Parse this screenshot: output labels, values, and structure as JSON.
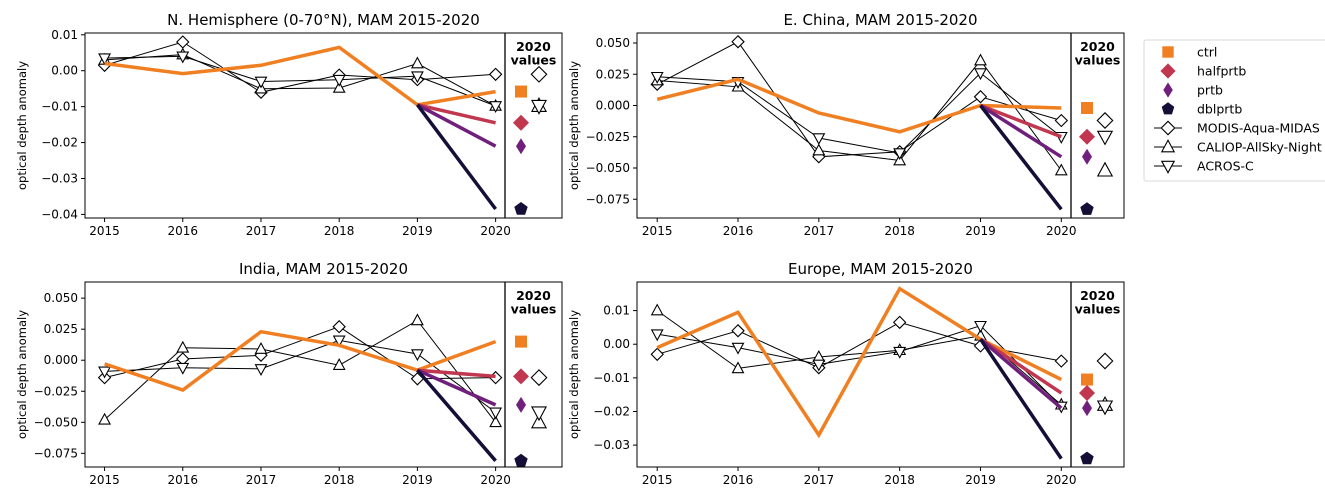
{
  "chart_data": [
    {
      "type": "line",
      "title": "N. Hemisphere (0-70°N), MAM 2015-2020",
      "ylabel": "optical depth anomaly",
      "xlabel": "",
      "x": [
        2015,
        2016,
        2017,
        2018,
        2019,
        2020
      ],
      "ylim": [
        -0.041,
        0.0105
      ],
      "yticks": [
        0.01,
        0.0,
        -0.01,
        -0.02,
        -0.03,
        -0.04
      ],
      "ytick_labels": [
        "0.01",
        "0.00",
        "−0.01",
        "−0.02",
        "−0.03",
        "−0.04"
      ],
      "inset_label": "2020\nvalues",
      "series": [
        {
          "name": "ctrl",
          "values": [
            0.002,
            -0.0008,
            0.0015,
            0.0065,
            -0.0095,
            -0.0058
          ],
          "value_2020": -0.0058
        },
        {
          "name": "halfprtb",
          "values": [
            null,
            null,
            null,
            null,
            -0.0095,
            -0.0145
          ],
          "value_2020": -0.0145
        },
        {
          "name": "prtb",
          "values": [
            null,
            null,
            null,
            null,
            -0.0095,
            -0.021
          ],
          "value_2020": -0.021
        },
        {
          "name": "dblprtb",
          "values": [
            null,
            null,
            null,
            null,
            -0.0095,
            -0.0385
          ],
          "value_2020": -0.0385
        },
        {
          "name": "MODIS-Aqua-MIDAS",
          "values": [
            0.0015,
            0.008,
            -0.006,
            -0.0012,
            -0.0025,
            -0.001
          ],
          "value_2020": -0.001
        },
        {
          "name": "CALIOP-AllSky-Night",
          "values": [
            0.003,
            0.0045,
            -0.005,
            -0.0048,
            0.002,
            -0.0098
          ],
          "value_2020": -0.0098
        },
        {
          "name": "ACROS-C",
          "values": [
            0.0035,
            0.004,
            -0.003,
            -0.0025,
            -0.0015,
            -0.0098
          ],
          "value_2020": -0.0098
        }
      ]
    },
    {
      "type": "line",
      "title": "E. China, MAM 2015-2020",
      "ylabel": "optical depth anomaly",
      "xlabel": "",
      "x": [
        2015,
        2016,
        2017,
        2018,
        2019,
        2020
      ],
      "ylim": [
        -0.09,
        0.058
      ],
      "yticks": [
        0.05,
        0.025,
        0.0,
        -0.025,
        -0.05,
        -0.075
      ],
      "ytick_labels": [
        "0.050",
        "0.025",
        "0.000",
        "−0.025",
        "−0.050",
        "−0.075"
      ],
      "inset_label": "2020\nvalues",
      "series": [
        {
          "name": "ctrl",
          "values": [
            0.005,
            0.021,
            -0.006,
            -0.021,
            0.0,
            -0.002
          ],
          "value_2020": -0.002
        },
        {
          "name": "halfprtb",
          "values": [
            null,
            null,
            null,
            null,
            0.0,
            -0.025
          ],
          "value_2020": -0.025
        },
        {
          "name": "prtb",
          "values": [
            null,
            null,
            null,
            null,
            0.0,
            -0.041
          ],
          "value_2020": -0.041
        },
        {
          "name": "dblprtb",
          "values": [
            null,
            null,
            null,
            null,
            0.0,
            -0.083
          ],
          "value_2020": -0.083
        },
        {
          "name": "MODIS-Aqua-MIDAS",
          "values": [
            0.017,
            0.051,
            -0.041,
            -0.037,
            0.007,
            -0.012
          ],
          "value_2020": -0.012
        },
        {
          "name": "CALIOP-AllSky-Night",
          "values": [
            0.02,
            0.015,
            -0.036,
            -0.044,
            0.036,
            -0.052
          ],
          "value_2020": -0.052
        },
        {
          "name": "ACROS-C",
          "values": [
            0.023,
            0.019,
            -0.026,
            -0.038,
            0.026,
            -0.025
          ],
          "value_2020": -0.025
        }
      ]
    },
    {
      "type": "line",
      "title": "India, MAM 2015-2020",
      "ylabel": "optical depth anomaly",
      "xlabel": "",
      "x": [
        2015,
        2016,
        2017,
        2018,
        2019,
        2020
      ],
      "ylim": [
        -0.086,
        0.063
      ],
      "yticks": [
        0.05,
        0.025,
        0.0,
        -0.025,
        -0.05,
        -0.075
      ],
      "ytick_labels": [
        "0.050",
        "0.025",
        "0.000",
        "−0.025",
        "−0.050",
        "−0.075"
      ],
      "inset_label": "2020\nvalues",
      "series": [
        {
          "name": "ctrl",
          "values": [
            -0.003,
            -0.024,
            0.023,
            0.012,
            -0.008,
            0.015
          ],
          "value_2020": 0.015
        },
        {
          "name": "halfprtb",
          "values": [
            null,
            null,
            null,
            null,
            -0.008,
            -0.013
          ],
          "value_2020": -0.013
        },
        {
          "name": "prtb",
          "values": [
            null,
            null,
            null,
            null,
            -0.008,
            -0.036
          ],
          "value_2020": -0.036
        },
        {
          "name": "dblprtb",
          "values": [
            null,
            null,
            null,
            null,
            -0.008,
            -0.081
          ],
          "value_2020": -0.081
        },
        {
          "name": "MODIS-Aqua-MIDAS",
          "values": [
            -0.014,
            0.001,
            0.004,
            0.027,
            -0.015,
            -0.014
          ],
          "value_2020": -0.014
        },
        {
          "name": "CALIOP-AllSky-Night",
          "values": [
            -0.048,
            0.01,
            0.009,
            -0.004,
            0.032,
            -0.05
          ],
          "value_2020": -0.05
        },
        {
          "name": "ACROS-C",
          "values": [
            -0.009,
            -0.006,
            -0.007,
            0.016,
            0.005,
            -0.042
          ],
          "value_2020": -0.042
        }
      ]
    },
    {
      "type": "line",
      "title": "Europe, MAM 2015-2020",
      "ylabel": "optical depth anomaly",
      "xlabel": "",
      "x": [
        2015,
        2016,
        2017,
        2018,
        2019,
        2020
      ],
      "ylim": [
        -0.0365,
        0.0185
      ],
      "yticks": [
        0.01,
        0.0,
        -0.01,
        -0.02,
        -0.03
      ],
      "ytick_labels": [
        "0.01",
        "0.00",
        "−0.01",
        "−0.02",
        "−0.03"
      ],
      "inset_label": "2020\nvalues",
      "series": [
        {
          "name": "ctrl",
          "values": [
            -0.001,
            0.0095,
            -0.027,
            0.0165,
            0.0015,
            -0.0105
          ],
          "value_2020": -0.0105
        },
        {
          "name": "halfprtb",
          "values": [
            null,
            null,
            null,
            null,
            0.0015,
            -0.0145
          ],
          "value_2020": -0.0145
        },
        {
          "name": "prtb",
          "values": [
            null,
            null,
            null,
            null,
            0.0015,
            -0.019
          ],
          "value_2020": -0.019
        },
        {
          "name": "dblprtb",
          "values": [
            null,
            null,
            null,
            null,
            0.0015,
            -0.034
          ],
          "value_2020": -0.034
        },
        {
          "name": "MODIS-Aqua-MIDAS",
          "values": [
            -0.003,
            0.004,
            -0.007,
            0.0065,
            -0.0005,
            -0.005
          ],
          "value_2020": -0.005
        },
        {
          "name": "CALIOP-AllSky-Night",
          "values": [
            0.01,
            -0.0072,
            -0.0038,
            -0.0018,
            0.0025,
            -0.018
          ],
          "value_2020": -0.018
        },
        {
          "name": "ACROS-C",
          "values": [
            0.003,
            -0.001,
            -0.006,
            -0.0022,
            0.0055,
            -0.0185
          ],
          "value_2020": -0.0185
        }
      ]
    }
  ],
  "legend": {
    "placement": "right",
    "entries": [
      {
        "name": "ctrl",
        "marker": "square",
        "color": "#f07f22"
      },
      {
        "name": "halfprtb",
        "marker": "diamond",
        "color": "#c0374f"
      },
      {
        "name": "prtb",
        "marker": "thin-diamond",
        "color": "#711f7c"
      },
      {
        "name": "dblprtb",
        "marker": "pentagon",
        "color": "#150e36"
      },
      {
        "name": "MODIS-Aqua-MIDAS",
        "marker": "open-diamond",
        "color": "#000000"
      },
      {
        "name": "CALIOP-AllSky-Night",
        "marker": "open-triangle-up",
        "color": "#000000"
      },
      {
        "name": "ACROS-C",
        "marker": "open-triangle-down",
        "color": "#000000"
      }
    ]
  },
  "colors": {
    "ctrl": "#f07f22",
    "halfprtb": "#c0374f",
    "prtb": "#711f7c",
    "dblprtb": "#150e36",
    "obs": "#000000"
  }
}
